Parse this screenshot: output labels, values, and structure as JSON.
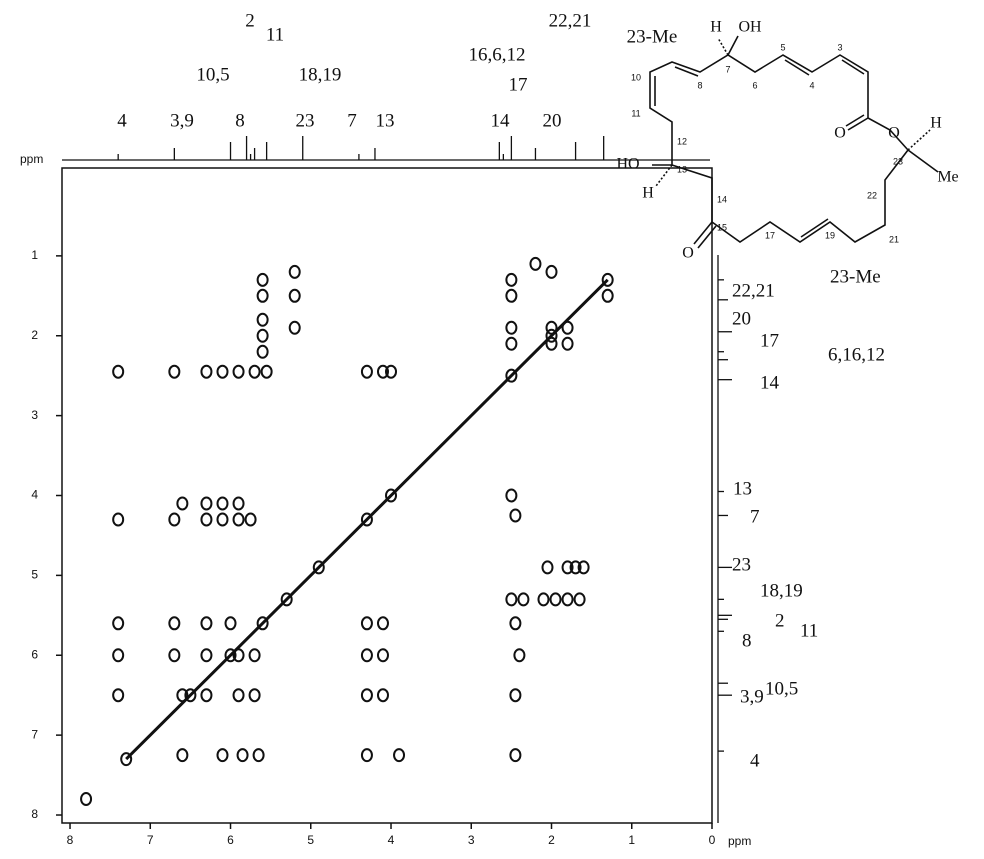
{
  "chart_data": {
    "type": "scatter",
    "xlabel": "ppm",
    "ylabel": "ppm",
    "xlim": [
      8.1,
      0
    ],
    "ylim": [
      -0.1,
      8.1
    ],
    "xticks": [
      8,
      7,
      6,
      5,
      4,
      3,
      2,
      1,
      0
    ],
    "yticks": [
      1,
      2,
      3,
      4,
      5,
      6,
      7,
      8
    ],
    "color": "#111111",
    "x": [
      7.4,
      6.7,
      6.3,
      6.1,
      5.9,
      5.7,
      5.55,
      4.3,
      4.1,
      4.0,
      7.4,
      6.7,
      6.3,
      6.1,
      5.9,
      5.75,
      6.6,
      6.3,
      6.1,
      5.9,
      7.4,
      6.7,
      6.3,
      6.0,
      4.3,
      4.1,
      2.45,
      7.4,
      6.7,
      6.3,
      5.9,
      5.7,
      4.3,
      4.1,
      2.4,
      7.4,
      6.6,
      6.3,
      5.9,
      5.7,
      4.3,
      4.1,
      2.45,
      6.6,
      6.1,
      5.85,
      5.65,
      4.3,
      3.9,
      2.45,
      2.5,
      2.45,
      2.5,
      2.35,
      2.1,
      1.95,
      1.8,
      1.65,
      2.05,
      1.8,
      1.7,
      1.6,
      5.6,
      5.6,
      5.6,
      5.6,
      5.6,
      5.2,
      5.2,
      5.2,
      2.5,
      2.5,
      2.5,
      2.5,
      2.0,
      2.0,
      2.0,
      1.8,
      1.8,
      1.3,
      2.2,
      7.3,
      6.5,
      6.0,
      5.6,
      5.3,
      4.9,
      4.3,
      4.0,
      2.5,
      2.0,
      1.3,
      7.8
    ],
    "values": [
      2.45,
      2.45,
      2.45,
      2.45,
      2.45,
      2.45,
      2.45,
      2.45,
      2.45,
      2.45,
      4.3,
      4.3,
      4.3,
      4.3,
      4.3,
      4.3,
      4.1,
      4.1,
      4.1,
      4.1,
      5.6,
      5.6,
      5.6,
      5.6,
      5.6,
      5.6,
      5.6,
      6.0,
      6.0,
      6.0,
      6.0,
      6.0,
      6.0,
      6.0,
      6.0,
      6.5,
      6.5,
      6.5,
      6.5,
      6.5,
      6.5,
      6.5,
      6.5,
      7.25,
      7.25,
      7.25,
      7.25,
      7.25,
      7.25,
      7.25,
      4.0,
      4.25,
      5.3,
      5.3,
      5.3,
      5.3,
      5.3,
      5.3,
      4.9,
      4.9,
      4.9,
      4.9,
      1.3,
      1.5,
      1.8,
      2.0,
      2.2,
      1.2,
      1.5,
      1.9,
      1.3,
      1.5,
      1.9,
      2.1,
      1.2,
      1.9,
      2.1,
      1.9,
      2.1,
      1.5,
      1.1,
      7.3,
      6.5,
      6.0,
      5.6,
      5.3,
      4.9,
      4.3,
      4.0,
      2.5,
      2.0,
      1.3,
      7.8
    ],
    "top_peaks": [
      {
        "text": "4",
        "x": 7.4
      },
      {
        "text": "3,9",
        "x": 6.7
      },
      {
        "text": "8",
        "x": 6.0
      },
      {
        "text": "10,5",
        "x": 5.8
      },
      {
        "text": "2",
        "x": 5.75
      },
      {
        "text": "11",
        "x": 5.7
      },
      {
        "text": "18,19",
        "x": 5.55
      },
      {
        "text": "23",
        "x": 5.1
      },
      {
        "text": "7",
        "x": 4.4
      },
      {
        "text": "13",
        "x": 4.2
      },
      {
        "text": "14",
        "x": 2.65
      },
      {
        "text": "17",
        "x": 2.5
      },
      {
        "text": "16,6,12",
        "x": 2.6
      },
      {
        "text": "20",
        "x": 2.2
      },
      {
        "text": "22,21",
        "x": 1.7
      },
      {
        "text": "23-Me",
        "x": 1.35
      }
    ],
    "right_peaks": [
      {
        "text": "23-Me",
        "y": 1.3
      },
      {
        "text": "22,21",
        "y": 1.55
      },
      {
        "text": "20",
        "y": 1.95
      },
      {
        "text": "17",
        "y": 2.2
      },
      {
        "text": "6,16,12",
        "y": 2.3
      },
      {
        "text": "14",
        "y": 2.55
      },
      {
        "text": "13",
        "y": 3.95
      },
      {
        "text": "7",
        "y": 4.25
      },
      {
        "text": "23",
        "y": 4.9
      },
      {
        "text": "18,19",
        "y": 5.3
      },
      {
        "text": "11",
        "y": 5.55
      },
      {
        "text": "2",
        "y": 5.5
      },
      {
        "text": "8",
        "y": 5.7
      },
      {
        "text": "10,5",
        "y": 6.35
      },
      {
        "text": "3,9",
        "y": 6.5
      },
      {
        "text": "4",
        "y": 7.2
      }
    ]
  },
  "structure": {
    "labels": [
      "H",
      "OH",
      "7",
      "10",
      "8",
      "6",
      "5",
      "4",
      "3",
      "11",
      "12",
      "HO",
      "13",
      "H",
      "14",
      "15",
      "O",
      "17",
      "19",
      "O",
      "O",
      "23",
      "H",
      "22",
      "Me",
      "21"
    ]
  }
}
